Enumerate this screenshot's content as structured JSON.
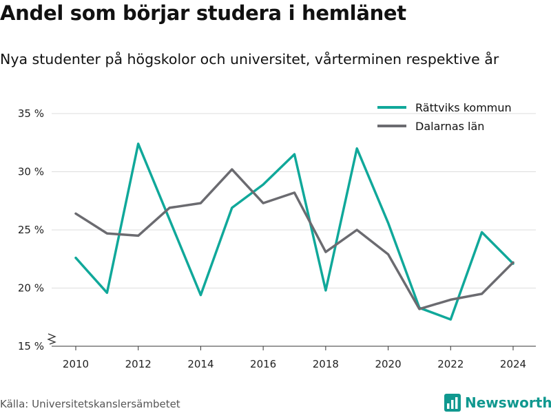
{
  "header": {
    "title": "Andel som börjar studera i hemlänet",
    "subtitle": "Nya studenter på högskolor och universitet, vårterminen respektive år"
  },
  "footer": {
    "source": "Källa: Universitetskanslersämbetet",
    "brand": "Newsworthy"
  },
  "colors": {
    "series_teal": "#10a89a",
    "series_gray": "#6b6b70",
    "grid": "#dddddd",
    "brand": "#10988f"
  },
  "icons": {
    "brand_logo": "bar-chart-icon",
    "axis_break": "zigzag-break-icon"
  },
  "chart_data": {
    "type": "line",
    "title": "Andel som börjar studera i hemlänet",
    "subtitle": "Nya studenter på högskolor och universitet, vårterminen respektive år",
    "xlabel": "",
    "ylabel": "",
    "x": [
      2010,
      2011,
      2012,
      2013,
      2014,
      2015,
      2016,
      2017,
      2018,
      2019,
      2020,
      2021,
      2022,
      2023,
      2024
    ],
    "x_ticks": [
      "2010",
      "2012",
      "2014",
      "2016",
      "2018",
      "2020",
      "2022",
      "2024"
    ],
    "y_ticks": [
      "15 %",
      "20 %",
      "25 %",
      "30 %",
      "35 %"
    ],
    "ylim": [
      15,
      35
    ],
    "grid": true,
    "legend_position": "top-right",
    "series": [
      {
        "name": "Rättviks kommun",
        "color": "#10a89a",
        "values": [
          22.6,
          19.6,
          32.4,
          25.9,
          19.4,
          26.9,
          28.9,
          31.5,
          19.8,
          32.0,
          25.6,
          18.3,
          17.3,
          24.8,
          22.1
        ]
      },
      {
        "name": "Dalarnas län",
        "color": "#6b6b70",
        "values": [
          26.4,
          24.7,
          24.5,
          26.9,
          27.3,
          30.2,
          27.3,
          28.2,
          23.1,
          25.0,
          22.9,
          18.2,
          19.0,
          19.5,
          22.2
        ]
      }
    ]
  }
}
